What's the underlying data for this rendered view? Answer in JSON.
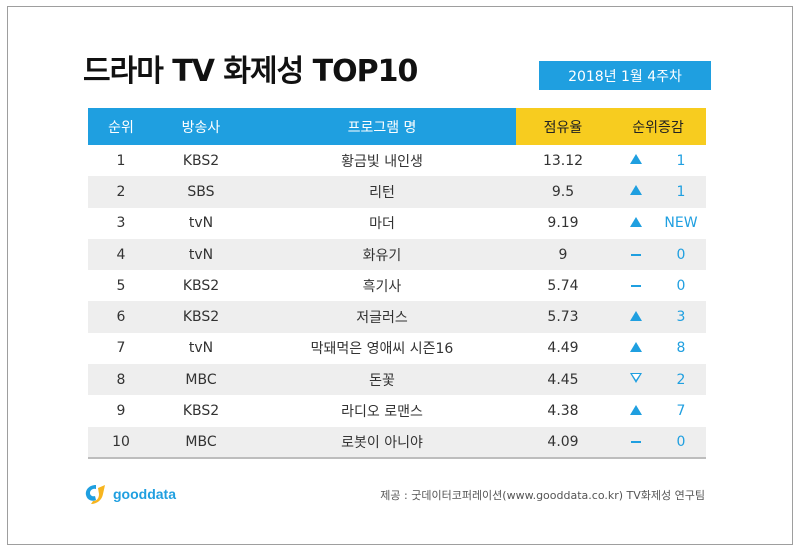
{
  "title": "드라마 TV 화제성 TOP10",
  "date_badge": "2018년 1월 4주차",
  "columns": [
    "순위",
    "방송사",
    "프로그램 명",
    "점유율",
    "순위증감"
  ],
  "rows": [
    {
      "rank": "1",
      "channel": "KBS2",
      "program": "황금빛 내인생",
      "share": "13.12",
      "dir": "up",
      "change": "1"
    },
    {
      "rank": "2",
      "channel": "SBS",
      "program": "리턴",
      "share": "9.5",
      "dir": "up",
      "change": "1"
    },
    {
      "rank": "3",
      "channel": "tvN",
      "program": "마더",
      "share": "9.19",
      "dir": "up",
      "change": "NEW"
    },
    {
      "rank": "4",
      "channel": "tvN",
      "program": "화유기",
      "share": "9",
      "dir": "same",
      "change": "0"
    },
    {
      "rank": "5",
      "channel": "KBS2",
      "program": "흑기사",
      "share": "5.74",
      "dir": "same",
      "change": "0"
    },
    {
      "rank": "6",
      "channel": "KBS2",
      "program": "저글러스",
      "share": "5.73",
      "dir": "up",
      "change": "3"
    },
    {
      "rank": "7",
      "channel": "tvN",
      "program": "막돼먹은 영애씨 시즌16",
      "share": "4.49",
      "dir": "up",
      "change": "8"
    },
    {
      "rank": "8",
      "channel": "MBC",
      "program": "돈꽃",
      "share": "4.45",
      "dir": "down",
      "change": "2"
    },
    {
      "rank": "9",
      "channel": "KBS2",
      "program": "라디오 로맨스",
      "share": "4.38",
      "dir": "up",
      "change": "7"
    },
    {
      "rank": "10",
      "channel": "MBC",
      "program": "로봇이 아니야",
      "share": "4.09",
      "dir": "same",
      "change": "0"
    }
  ],
  "logo_text": "gooddata",
  "credit": "제공 : 굿데이터코퍼레이션(www.gooddata.co.kr) TV화제성 연구팀",
  "colors": {
    "accent": "#1f9fe0",
    "highlight": "#f7cc1f"
  }
}
